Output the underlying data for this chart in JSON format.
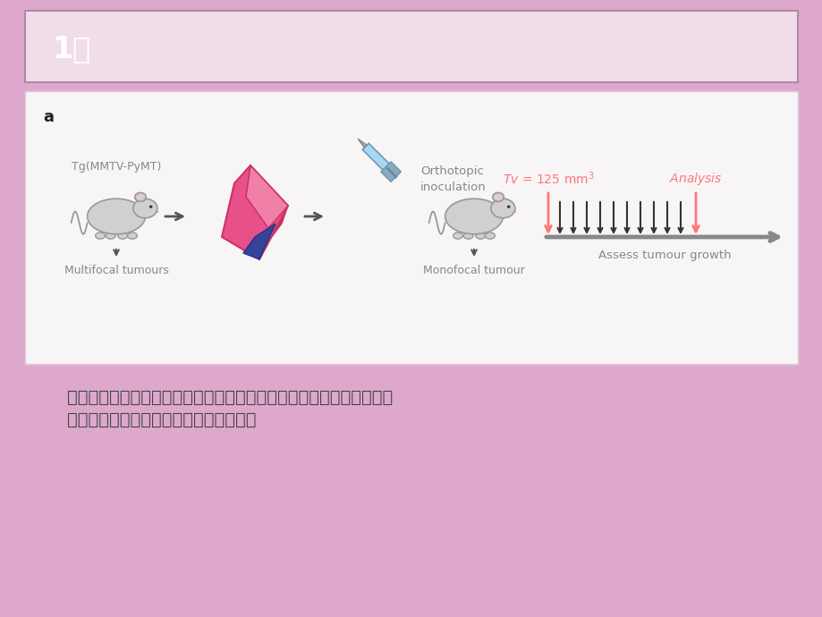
{
  "background_color": "#dda8cc",
  "title_box_bg": "#f0dde8",
  "title_text": "1、",
  "title_fontsize": 24,
  "title_color": "#ffffff",
  "title_box_edge": "#b088a8",
  "image_box_bg": "#f8f5f7",
  "image_box_edge": "#ddccdd",
  "panel_label": "a",
  "tg_label": "Tg(MMTV-PyMT)",
  "multifocal_label": "Multifocal tumours",
  "orthotopic_label": "Orthotopic\ninoculation",
  "monofocal_label": "Monofocal tumour",
  "tv_label_italic": "Tv",
  "tv_label_rest": " = 125 mm",
  "analysis_label": "Analysis",
  "assess_label": "Assess tumour growth",
  "red_color": "#ff7777",
  "dark_arrow_color": "#555555",
  "grey_label_color": "#888888",
  "chinese_text_line1": "多病灶的肿瘤细胞不易跟踪察看，所以运用原位移植的方法把多病灶的",
  "chinese_text_line2": "肿瘤细胞提取液注射到另一同类小鼠体内",
  "chinese_fontsize": 14,
  "chinese_color": "#444444",
  "mouse_body_color": "#d0d0d0",
  "mouse_outline_color": "#999999"
}
